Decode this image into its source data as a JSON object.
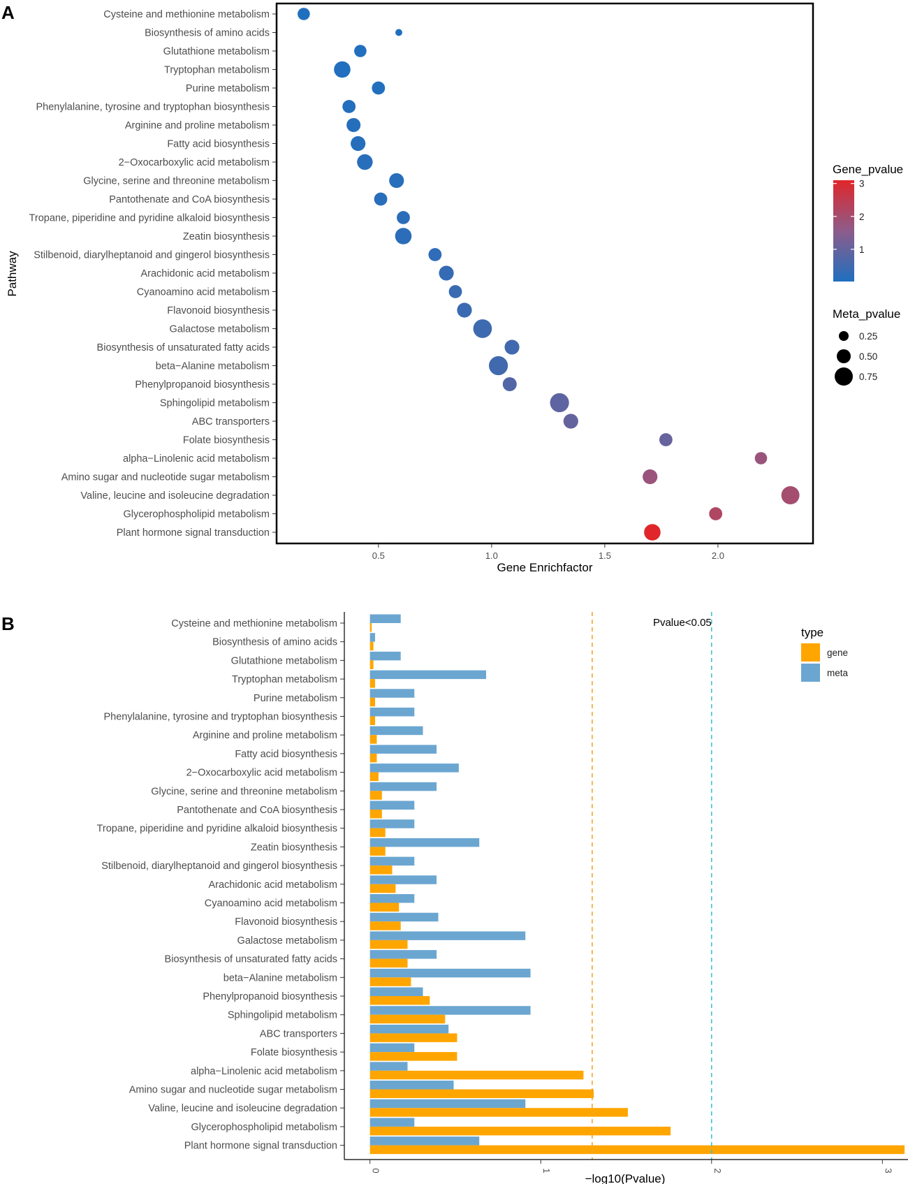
{
  "chart_data": [
    {
      "panel": "A",
      "type": "scatter",
      "xlabel": "Gene Enrichfactor",
      "ylabel": "Pathway",
      "xlim": [
        0.05,
        2.42
      ],
      "xticks": [
        "0.5",
        "1.0",
        "1.5",
        "2.0"
      ],
      "legend_color_title": "Gene_pvalue",
      "legend_color_ticks": [
        "3",
        "2",
        "1"
      ],
      "legend_color_range": [
        0.02,
        3.1
      ],
      "legend_size_title": "Meta_pvalue",
      "legend_size_ticks": [
        "0.25",
        "0.50",
        "0.75"
      ],
      "pathways": [
        "Cysteine and methionine metabolism",
        "Biosynthesis of amino acids",
        "Glutathione metabolism",
        "Tryptophan metabolism",
        "Purine metabolism",
        "Phenylalanine, tyrosine and tryptophan biosynthesis",
        "Arginine and proline metabolism",
        "Fatty acid biosynthesis",
        "2−Oxocarboxylic acid metabolism",
        "Glycine, serine and threonine metabolism",
        "Pantothenate and CoA biosynthesis",
        "Tropane, piperidine and pyridine alkaloid biosynthesis",
        "Zeatin biosynthesis",
        "Stilbenoid, diarylheptanoid and gingerol biosynthesis",
        "Arachidonic acid metabolism",
        "Cyanoamino acid metabolism",
        "Flavonoid biosynthesis",
        "Galactose metabolism",
        "Biosynthesis of unsaturated fatty acids",
        "beta−Alanine metabolism",
        "Phenylpropanoid biosynthesis",
        "Sphingolipid metabolism",
        "ABC transporters",
        "Folate biosynthesis",
        "alpha−Linolenic acid metabolism",
        "Amino sugar and nucleotide sugar metabolism",
        "Valine, leucine and isoleucine degradation",
        "Glycerophospholipid metabolism",
        "Plant hormone signal transduction"
      ],
      "enrichfactor": [
        0.17,
        0.59,
        0.42,
        0.34,
        0.5,
        0.37,
        0.39,
        0.41,
        0.44,
        0.58,
        0.51,
        0.61,
        0.61,
        0.75,
        0.8,
        0.84,
        0.88,
        0.96,
        1.09,
        1.03,
        1.08,
        1.3,
        1.35,
        1.77,
        2.19,
        1.7,
        2.32,
        1.99,
        1.71
      ],
      "gene_pvalue": [
        0.03,
        0.03,
        0.05,
        0.05,
        0.06,
        0.07,
        0.1,
        0.12,
        0.14,
        0.14,
        0.14,
        0.2,
        0.2,
        0.26,
        0.33,
        0.4,
        0.4,
        0.46,
        0.48,
        0.5,
        0.73,
        0.9,
        1.0,
        1.02,
        1.81,
        1.8,
        2.0,
        2.2,
        3.1
      ],
      "meta_pvalue": [
        0.4,
        0.08,
        0.4,
        0.65,
        0.45,
        0.45,
        0.5,
        0.55,
        0.6,
        0.55,
        0.45,
        0.45,
        0.65,
        0.45,
        0.55,
        0.45,
        0.55,
        0.78,
        0.55,
        0.8,
        0.5,
        0.8,
        0.55,
        0.45,
        0.4,
        0.55,
        0.75,
        0.45,
        0.65
      ]
    },
    {
      "panel": "B",
      "type": "bar",
      "orientation": "horizontal",
      "xlabel": "−log10(Pvalue)",
      "xlim": [
        -0.15,
        3.15
      ],
      "xticks": [
        "0",
        "1",
        "2",
        "3"
      ],
      "reference_lines": [
        {
          "value": 1.301,
          "color": "#f2a52c",
          "style": "dashed"
        },
        {
          "value": 2.0,
          "color": "#3fc0cf",
          "style": "dashed",
          "label": "Pvalue<0.05"
        }
      ],
      "legend_title": "type",
      "categories": [
        "Cysteine and methionine metabolism",
        "Biosynthesis of amino acids",
        "Glutathione metabolism",
        "Tryptophan metabolism",
        "Purine metabolism",
        "Phenylalanine, tyrosine and tryptophan biosynthesis",
        "Arginine and proline metabolism",
        "Fatty acid biosynthesis",
        "2−Oxocarboxylic acid metabolism",
        "Glycine, serine and threonine metabolism",
        "Pantothenate and CoA biosynthesis",
        "Tropane, piperidine and pyridine alkaloid biosynthesis",
        "Zeatin biosynthesis",
        "Stilbenoid, diarylheptanoid and gingerol biosynthesis",
        "Arachidonic acid metabolism",
        "Cyanoamino acid metabolism",
        "Flavonoid biosynthesis",
        "Galactose metabolism",
        "Biosynthesis of unsaturated fatty acids",
        "beta−Alanine metabolism",
        "Phenylpropanoid biosynthesis",
        "Sphingolipid metabolism",
        "ABC transporters",
        "Folate biosynthesis",
        "alpha−Linolenic acid metabolism",
        "Amino sugar and nucleotide sugar metabolism",
        "Valine, leucine and isoleucine degradation",
        "Glycerophospholipid metabolism",
        "Plant hormone signal transduction"
      ],
      "series": [
        {
          "name": "gene",
          "color": "#ffa500",
          "values": [
            0.01,
            0.02,
            0.02,
            0.03,
            0.03,
            0.03,
            0.04,
            0.04,
            0.05,
            0.07,
            0.07,
            0.09,
            0.09,
            0.13,
            0.15,
            0.17,
            0.18,
            0.22,
            0.22,
            0.24,
            0.35,
            0.44,
            0.51,
            0.51,
            1.25,
            1.31,
            1.51,
            1.76,
            3.13
          ]
        },
        {
          "name": "meta",
          "color": "#6ba6d1",
          "values": [
            0.18,
            0.03,
            0.18,
            0.68,
            0.26,
            0.26,
            0.31,
            0.39,
            0.52,
            0.39,
            0.26,
            0.26,
            0.64,
            0.26,
            0.39,
            0.26,
            0.4,
            0.91,
            0.39,
            0.94,
            0.31,
            0.94,
            0.46,
            0.26,
            0.22,
            0.49,
            0.91,
            0.26,
            0.64
          ]
        }
      ]
    }
  ]
}
